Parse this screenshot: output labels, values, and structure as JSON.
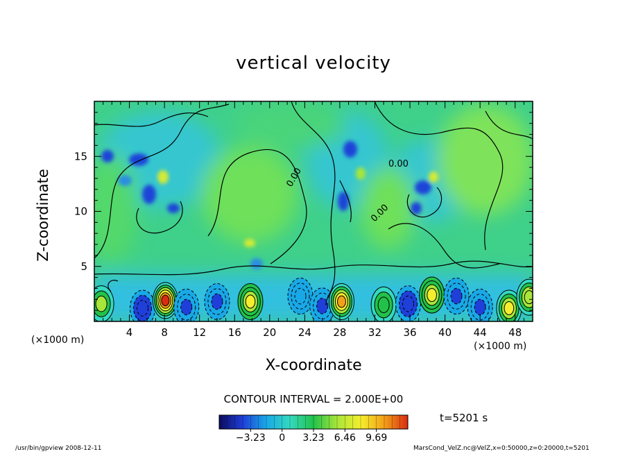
{
  "chart_data": {
    "type": "heatmap",
    "title": "vertical velocity",
    "xlabel": "X-coordinate",
    "ylabel": "Z-coordinate",
    "x_unit_label": "(×1000 m)",
    "z_unit_label": "(×1000 m)",
    "x_ticks": [
      4,
      8,
      12,
      16,
      20,
      24,
      28,
      32,
      36,
      40,
      44,
      48
    ],
    "z_ticks": [
      5,
      10,
      15
    ],
    "xlim": [
      0,
      50
    ],
    "zlim": [
      0,
      20
    ],
    "contour_interval_text": "CONTOUR INTERVAL = 2.000E+00",
    "contour_zero_label": "0.00",
    "colorbar": {
      "ticks": [
        -3.23,
        0,
        3.23,
        6.46,
        9.69
      ],
      "tick_labels": [
        "−3.23",
        "0",
        "3.23",
        "6.46",
        "9.69"
      ],
      "range": [
        -6.46,
        12.92
      ],
      "colors": [
        "#0b0b5e",
        "#1f3fd8",
        "#19a8e6",
        "#34d9c0",
        "#22c24a",
        "#a8e63a",
        "#f5ee2e",
        "#f2a019",
        "#d92b12"
      ]
    },
    "blobs": [
      {
        "x": 0.8,
        "z": 1.6,
        "value": 6.0
      },
      {
        "x": 5.5,
        "z": 1.2,
        "value": -4.5
      },
      {
        "x": 8.1,
        "z": 1.9,
        "value": 12.0
      },
      {
        "x": 10.5,
        "z": 1.3,
        "value": -3.5
      },
      {
        "x": 14.0,
        "z": 1.8,
        "value": -3.0
      },
      {
        "x": 17.8,
        "z": 1.8,
        "value": 8.5
      },
      {
        "x": 23.5,
        "z": 2.3,
        "value": -2.8
      },
      {
        "x": 26.0,
        "z": 1.4,
        "value": -4.0
      },
      {
        "x": 28.2,
        "z": 1.8,
        "value": 9.5
      },
      {
        "x": 33.0,
        "z": 1.5,
        "value": 3.5
      },
      {
        "x": 35.8,
        "z": 1.6,
        "value": -4.5
      },
      {
        "x": 38.5,
        "z": 2.4,
        "value": 8.5
      },
      {
        "x": 41.3,
        "z": 2.3,
        "value": -4.0
      },
      {
        "x": 44.0,
        "z": 1.3,
        "value": -3.5
      },
      {
        "x": 47.3,
        "z": 1.2,
        "value": 7.0
      },
      {
        "x": 49.6,
        "z": 2.2,
        "value": 6.5
      }
    ],
    "time_text": "t=5201 s"
  },
  "footer": {
    "left": "/usr/bin/gpview   2008-12-11",
    "right": "MarsCond_VelZ.nc@VelZ,x=0:50000,z=0:20000,t=5201"
  }
}
